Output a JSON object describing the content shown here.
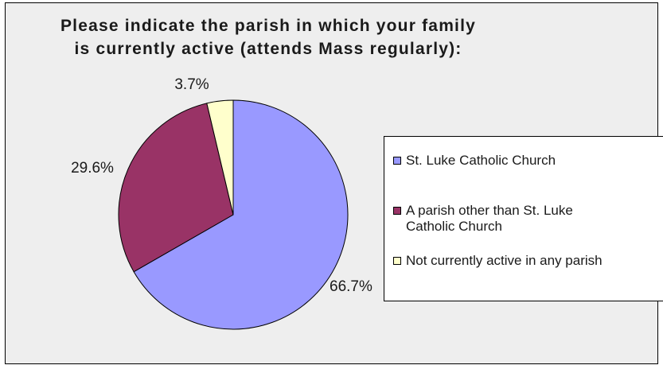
{
  "chart_data": {
    "type": "pie",
    "title": [
      "Please indicate the parish in which your family",
      "is currently active (attends Mass regularly):"
    ],
    "categories": [
      "St. Luke Catholic Church",
      "A parish other than St. Luke Catholic Church",
      "Not currently active in any parish"
    ],
    "values": [
      66.7,
      29.6,
      3.7
    ],
    "data_labels": [
      "66.7%",
      "29.6%",
      "3.7%"
    ],
    "colors": [
      "#9999ff",
      "#993366",
      "#ffffcc"
    ],
    "legend_placement": "right"
  },
  "background_color": "#eeeeee",
  "legend_lines": [
    [
      "St. Luke Catholic Church"
    ],
    [
      "A parish other than St. Luke",
      "Catholic Church"
    ],
    [
      "Not currently active in any parish"
    ]
  ]
}
